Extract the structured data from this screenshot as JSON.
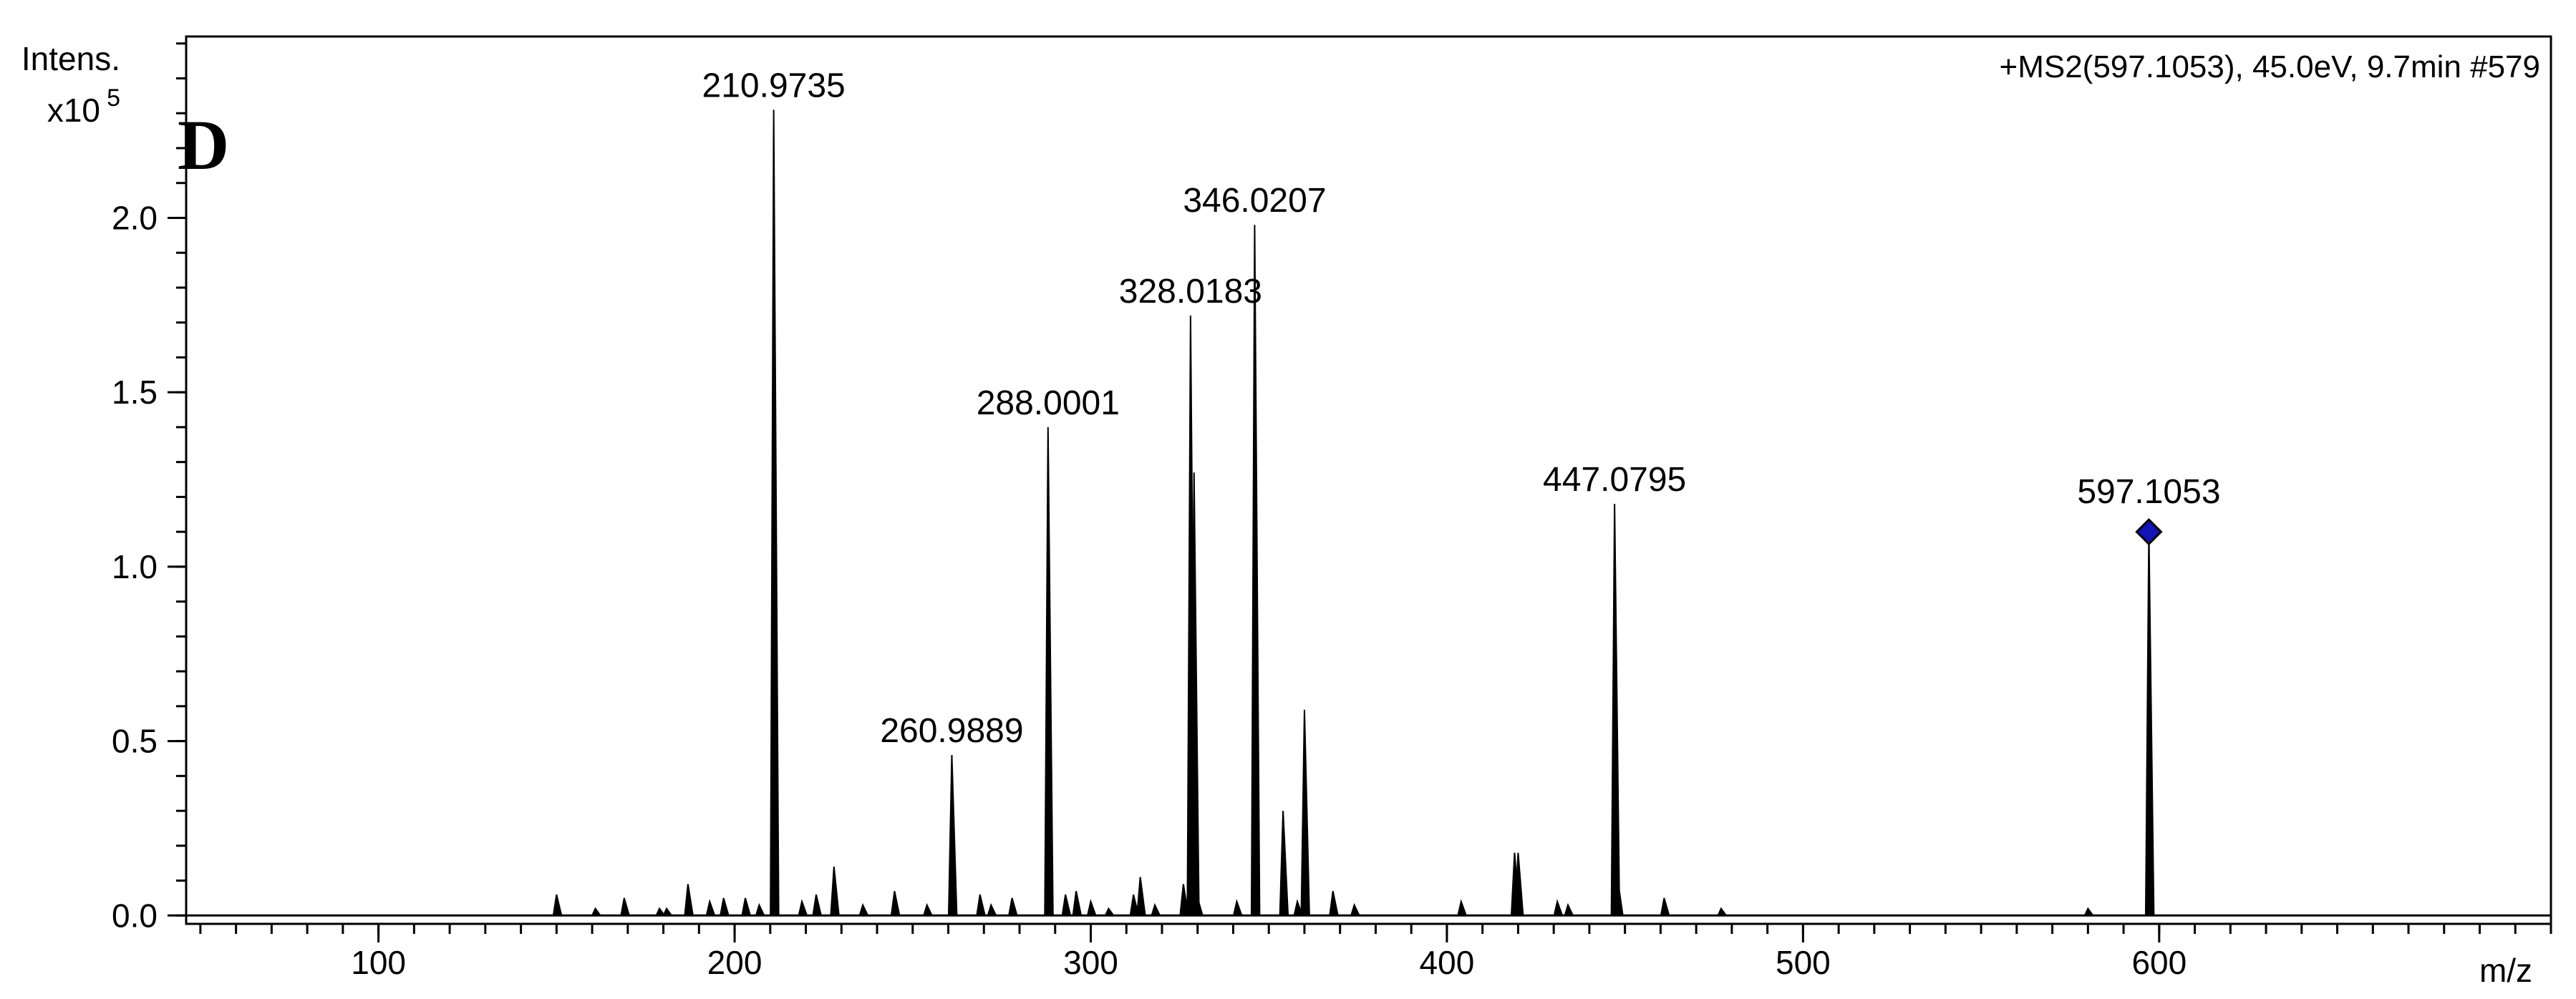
{
  "chart_data": {
    "type": "spectrum",
    "panel_label": "D",
    "header": "+MS2(597.1053), 45.0eV, 9.7min #579",
    "y_label": "Intens.",
    "y_scale": "x10",
    "y_exponent": "5",
    "x_label": "m/z",
    "xlim": [
      46,
      710
    ],
    "xticks": [
      100,
      200,
      300,
      400,
      500,
      600
    ],
    "xminor_step": 10,
    "ylim": [
      -0.024,
      2.52
    ],
    "yticks": [
      {
        "value": 0,
        "label": "0.0"
      },
      0.5,
      {
        "value": 1,
        "label": "1.0"
      },
      1.5,
      {
        "value": 2,
        "label": "2.0"
      }
    ],
    "yminor_step": 0.1,
    "color": "#000000",
    "labeled_peaks": [
      {
        "x": 210.9735,
        "value": 2.31
      },
      {
        "x": 260.9889,
        "value": 0.46
      },
      {
        "x": 288.0001,
        "value": 1.4
      },
      {
        "x": 328.0183,
        "value": 1.72
      },
      {
        "x": 346.0207,
        "value": 1.98
      },
      {
        "x": 447.0795,
        "value": 1.18
      },
      {
        "x": 597.1053,
        "value": 1.1,
        "marker": "diamond",
        "marker_color": "#1414b4"
      }
    ],
    "peaks": {
      "x": [
        150.0,
        160.9,
        169.0,
        178.9,
        180.9,
        186.9,
        193.0,
        196.9,
        203.0,
        206.9,
        218.9,
        222.9,
        227.9,
        236.0,
        244.9,
        254.0,
        268.9,
        272.0,
        277.9,
        292.9,
        295.9,
        300.0,
        305.0,
        312.0,
        313.9,
        318.0,
        326.0,
        329.0,
        330.0,
        341.0,
        354.0,
        358.0,
        360.0,
        368.0,
        374.0,
        404.0,
        419.0,
        420.0,
        431.0,
        434.0,
        448.0,
        461.0,
        477.0,
        580.0
      ],
      "values": [
        0.06,
        0.02,
        0.05,
        0.02,
        0.02,
        0.09,
        0.04,
        0.05,
        0.05,
        0.03,
        0.04,
        0.06,
        0.14,
        0.03,
        0.07,
        0.03,
        0.06,
        0.03,
        0.05,
        0.06,
        0.07,
        0.04,
        0.02,
        0.06,
        0.11,
        0.03,
        0.09,
        1.27,
        0.05,
        0.04,
        0.3,
        0.04,
        0.59,
        0.07,
        0.03,
        0.04,
        0.18,
        0.18,
        0.04,
        0.03,
        0.1,
        0.05,
        0.02,
        0.02
      ]
    }
  }
}
